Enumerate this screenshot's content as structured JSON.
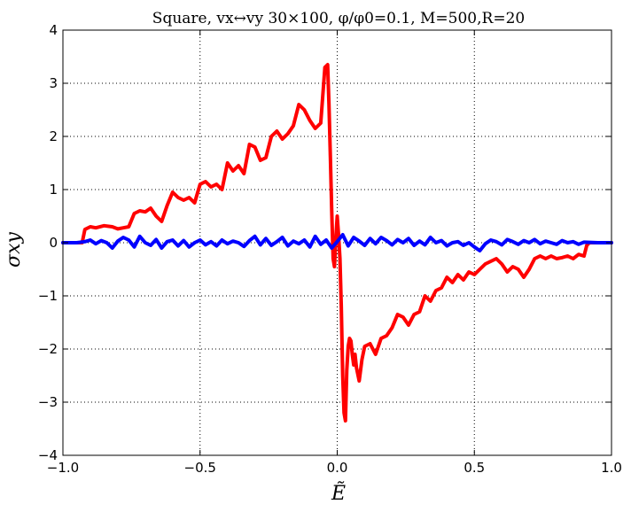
{
  "chart_data": {
    "type": "line",
    "title": "Square,  vx↔vy 30×100, φ/φ0=0.1, M=500,R=20",
    "xlabel": "Ẽ",
    "ylabel": "σxy",
    "xlim": [
      -1.0,
      1.0
    ],
    "ylim": [
      -4,
      4
    ],
    "x_ticks": [
      "−1.0",
      "−0.5",
      "0.0",
      "0.5",
      "1.0"
    ],
    "y_ticks": [
      "4",
      "3",
      "2",
      "1",
      "0",
      "−1",
      "−2",
      "−3",
      "−4"
    ],
    "grid": true,
    "series": [
      {
        "color": "#ff0000",
        "x": [
          -1.0,
          -0.93,
          -0.92,
          -0.9,
          -0.88,
          -0.85,
          -0.82,
          -0.8,
          -0.78,
          -0.76,
          -0.74,
          -0.72,
          -0.7,
          -0.68,
          -0.66,
          -0.64,
          -0.62,
          -0.6,
          -0.58,
          -0.56,
          -0.54,
          -0.52,
          -0.5,
          -0.48,
          -0.46,
          -0.44,
          -0.42,
          -0.4,
          -0.38,
          -0.36,
          -0.34,
          -0.32,
          -0.3,
          -0.28,
          -0.26,
          -0.24,
          -0.22,
          -0.2,
          -0.18,
          -0.16,
          -0.14,
          -0.12,
          -0.1,
          -0.08,
          -0.06,
          -0.045,
          -0.035,
          -0.03,
          -0.025,
          -0.02,
          -0.015,
          -0.01,
          -0.005,
          0.0,
          0.005,
          0.01,
          0.015,
          0.02,
          0.025,
          0.03,
          0.035,
          0.04,
          0.045,
          0.05,
          0.055,
          0.06,
          0.065,
          0.07,
          0.08,
          0.09,
          0.1,
          0.12,
          0.14,
          0.16,
          0.18,
          0.2,
          0.22,
          0.24,
          0.26,
          0.28,
          0.3,
          0.32,
          0.34,
          0.36,
          0.38,
          0.4,
          0.42,
          0.44,
          0.46,
          0.48,
          0.5,
          0.52,
          0.54,
          0.56,
          0.58,
          0.6,
          0.62,
          0.64,
          0.66,
          0.68,
          0.7,
          0.72,
          0.74,
          0.76,
          0.78,
          0.8,
          0.82,
          0.84,
          0.86,
          0.88,
          0.9,
          0.91,
          0.92,
          0.95,
          1.0
        ],
        "values": [
          0,
          0,
          0.25,
          0.3,
          0.28,
          0.32,
          0.3,
          0.26,
          0.28,
          0.3,
          0.55,
          0.6,
          0.58,
          0.65,
          0.5,
          0.4,
          0.7,
          0.95,
          0.85,
          0.8,
          0.85,
          0.75,
          1.1,
          1.15,
          1.05,
          1.1,
          1.0,
          1.5,
          1.35,
          1.45,
          1.3,
          1.85,
          1.8,
          1.55,
          1.6,
          2.0,
          2.1,
          1.95,
          2.05,
          2.2,
          2.6,
          2.5,
          2.3,
          2.15,
          2.25,
          3.3,
          3.35,
          2.6,
          1.6,
          0.6,
          -0.3,
          -0.45,
          0.1,
          0.5,
          0.15,
          -0.3,
          -1.2,
          -2.5,
          -3.2,
          -3.35,
          -2.4,
          -1.95,
          -1.8,
          -1.85,
          -2.1,
          -2.3,
          -2.1,
          -2.35,
          -2.6,
          -2.2,
          -1.95,
          -1.9,
          -2.1,
          -1.8,
          -1.75,
          -1.6,
          -1.35,
          -1.4,
          -1.55,
          -1.35,
          -1.3,
          -1.0,
          -1.1,
          -0.9,
          -0.85,
          -0.65,
          -0.75,
          -0.6,
          -0.7,
          -0.55,
          -0.6,
          -0.5,
          -0.4,
          -0.35,
          -0.3,
          -0.4,
          -0.55,
          -0.45,
          -0.5,
          -0.65,
          -0.5,
          -0.3,
          -0.25,
          -0.3,
          -0.25,
          -0.3,
          -0.28,
          -0.25,
          -0.3,
          -0.22,
          -0.25,
          -0.05,
          0,
          0,
          0
        ]
      },
      {
        "color": "#0000ff",
        "x": [
          -1.0,
          -0.95,
          -0.92,
          -0.9,
          -0.88,
          -0.86,
          -0.84,
          -0.82,
          -0.8,
          -0.78,
          -0.76,
          -0.74,
          -0.72,
          -0.7,
          -0.68,
          -0.66,
          -0.64,
          -0.62,
          -0.6,
          -0.58,
          -0.56,
          -0.54,
          -0.52,
          -0.5,
          -0.48,
          -0.46,
          -0.44,
          -0.42,
          -0.4,
          -0.38,
          -0.36,
          -0.34,
          -0.32,
          -0.3,
          -0.28,
          -0.26,
          -0.24,
          -0.22,
          -0.2,
          -0.18,
          -0.16,
          -0.14,
          -0.12,
          -0.1,
          -0.08,
          -0.06,
          -0.04,
          -0.02,
          0.0,
          0.02,
          0.04,
          0.06,
          0.08,
          0.1,
          0.12,
          0.14,
          0.16,
          0.18,
          0.2,
          0.22,
          0.24,
          0.26,
          0.28,
          0.3,
          0.32,
          0.34,
          0.36,
          0.38,
          0.4,
          0.42,
          0.44,
          0.46,
          0.48,
          0.5,
          0.52,
          0.54,
          0.56,
          0.58,
          0.6,
          0.62,
          0.64,
          0.66,
          0.68,
          0.7,
          0.72,
          0.74,
          0.76,
          0.78,
          0.8,
          0.82,
          0.84,
          0.86,
          0.88,
          0.9,
          0.95,
          1.0
        ],
        "values": [
          0,
          0,
          0.02,
          0.05,
          -0.02,
          0.04,
          0.0,
          -0.1,
          0.03,
          0.1,
          0.05,
          -0.08,
          0.12,
          0.0,
          -0.05,
          0.06,
          -0.1,
          0.02,
          0.05,
          -0.06,
          0.04,
          -0.08,
          0.0,
          0.05,
          -0.04,
          0.02,
          -0.06,
          0.05,
          -0.02,
          0.03,
          0.0,
          -0.07,
          0.04,
          0.12,
          -0.04,
          0.08,
          -0.05,
          0.02,
          0.1,
          -0.06,
          0.03,
          -0.02,
          0.05,
          -0.08,
          0.12,
          -0.03,
          0.05,
          -0.1,
          0.02,
          0.15,
          -0.06,
          0.1,
          0.03,
          -0.05,
          0.08,
          -0.02,
          0.1,
          0.04,
          -0.04,
          0.06,
          0.0,
          0.08,
          -0.05,
          0.03,
          -0.04,
          0.1,
          0.0,
          0.04,
          -0.06,
          0.0,
          0.02,
          -0.05,
          0.0,
          -0.08,
          -0.15,
          -0.02,
          0.05,
          0.02,
          -0.04,
          0.06,
          0.02,
          -0.03,
          0.04,
          0.0,
          0.06,
          -0.02,
          0.03,
          0.0,
          -0.03,
          0.04,
          0.0,
          0.02,
          -0.03,
          0.01,
          0,
          0
        ]
      }
    ]
  }
}
